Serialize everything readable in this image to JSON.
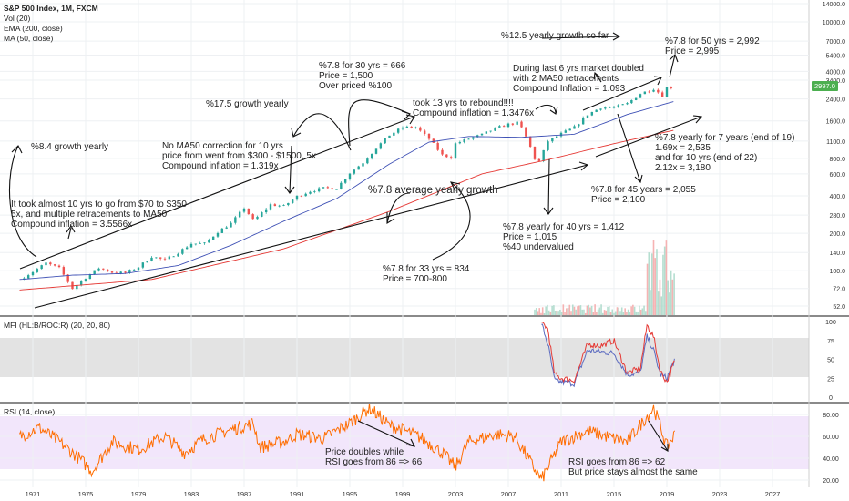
{
  "header": {
    "symbol": "S&P 500 Index, 1M, FXCM",
    "vol": "Vol (20)",
    "ema": "EMA (200, close)",
    "ma": "MA (50, close)",
    "last_price": "2997.0"
  },
  "panes": {
    "mfi_label": "MFI (HL:B/ROC:R) (20, 20, 80)",
    "rsi_label": "RSI (14, close)"
  },
  "annotations": [
    {
      "id": "a1",
      "lines": [
        "%8.4 growth yearly"
      ]
    },
    {
      "id": "a2",
      "lines": [
        "It took almost 10 yrs to go from $70 to $350",
        "5x, and multiple retracements to MA50",
        "Compound inflation = 3.5566x"
      ]
    },
    {
      "id": "a3",
      "lines": [
        "%17.5 growth yearly"
      ]
    },
    {
      "id": "a4",
      "lines": [
        "No MA50 correction for 10 yrs",
        "price from went from $300 - $1500, 5x",
        "Compound inflation = 1.319x"
      ]
    },
    {
      "id": "a5",
      "lines": [
        "%7.8 for 30 yrs = 666",
        "Price = 1,500",
        "Over priced %100"
      ]
    },
    {
      "id": "a6",
      "lines": [
        "took 13 yrs to rebound!!!!",
        "Compound inflation = 1.3476x"
      ]
    },
    {
      "id": "a7",
      "lines": [
        "%7.8 average yearly growth"
      ]
    },
    {
      "id": "a8",
      "lines": [
        "%7.8 for 33 yrs = 834",
        "Price = 700-800"
      ]
    },
    {
      "id": "a9",
      "lines": [
        "%12.5 yearly growth so far"
      ]
    },
    {
      "id": "a10",
      "lines": [
        "During last 6 yrs market doubled",
        "with 2 MA50 retracements",
        "Compound Inflation = 1.093"
      ]
    },
    {
      "id": "a11",
      "lines": [
        "%7.8 for 50 yrs = 2,992",
        "Price = 2,995"
      ]
    },
    {
      "id": "a12",
      "lines": [
        "%7.8 yearly for 7 years (end of 19)",
        "1.69x = 2,535",
        "and for 10 yrs (end of 22)",
        "2.12x = 3,180"
      ]
    },
    {
      "id": "a13",
      "lines": [
        "%7.8 for 45 years = 2,055",
        "Price = 2,100"
      ]
    },
    {
      "id": "a14",
      "lines": [
        "%7.8 yearly for 40 yrs = 1,412",
        "Price = 1,015",
        "%40 undervalued"
      ]
    },
    {
      "id": "a15",
      "lines": [
        "Price doubles while",
        "RSI goes from 86 => 66"
      ]
    },
    {
      "id": "a16",
      "lines": [
        "RSI goes from 86 => 62",
        "But price stays almost the same"
      ]
    }
  ],
  "chart_data": {
    "type": "line",
    "title": "S&P 500 Index, 1M, FXCM",
    "x_ticks": [
      "1971",
      "1975",
      "1979",
      "1983",
      "1987",
      "1991",
      "1995",
      "1999",
      "2003",
      "2007",
      "2011",
      "2015",
      "2019",
      "2023",
      "2027"
    ],
    "price_axis": {
      "scale": "log",
      "ticks": [
        "14000.0",
        "10000.0",
        "7000.0",
        "5400.0",
        "4000.0",
        "3400.0",
        "2400.0",
        "1600.0",
        "1100.0",
        "800.0",
        "600.0",
        "400.0",
        "280.0",
        "200.0",
        "140.0",
        "100.0",
        "72.0",
        "52.0"
      ]
    },
    "mfi_axis": {
      "ticks": [
        "100",
        "75",
        "50",
        "25",
        "0"
      ],
      "band": [
        20,
        80
      ]
    },
    "rsi_axis": {
      "ticks": [
        "80.00",
        "60.00",
        "40.00",
        "20.00"
      ],
      "band": [
        30,
        70
      ]
    },
    "price_series": {
      "name": "S&P 500",
      "x": [
        1970,
        1971,
        1972,
        1973,
        1974,
        1975,
        1976,
        1977,
        1978,
        1979,
        1980,
        1981,
        1982,
        1983,
        1984,
        1985,
        1986,
        1987,
        1987.8,
        1988,
        1989,
        1990,
        1991,
        1992,
        1993,
        1994,
        1995,
        1996,
        1997,
        1998,
        1999,
        2000,
        2001,
        2002,
        2002.8,
        2003,
        2004,
        2005,
        2006,
        2007,
        2007.8,
        2008.5,
        2009.2,
        2010,
        2011,
        2012,
        2013,
        2014,
        2015,
        2016,
        2017,
        2018,
        2018.9,
        2019,
        2019.6
      ],
      "y": [
        85,
        98,
        115,
        105,
        72,
        88,
        105,
        97,
        96,
        107,
        130,
        122,
        140,
        165,
        165,
        205,
        240,
        320,
        245,
        270,
        340,
        330,
        395,
        435,
        460,
        460,
        610,
        740,
        970,
        1230,
        1420,
        1420,
        1150,
        850,
        810,
        1050,
        1150,
        1240,
        1390,
        1500,
        1550,
        1100,
        700,
        1100,
        1260,
        1420,
        1800,
        2050,
        2050,
        2200,
        2650,
        2900,
        2450,
        2950,
        2995
      ]
    },
    "ema200_series": {
      "name": "EMA (200, close)",
      "x": [
        1970,
        1980,
        1990,
        1998,
        2005,
        2010,
        2015,
        2019.6
      ],
      "y": [
        70,
        85,
        150,
        300,
        600,
        780,
        1050,
        1350
      ]
    },
    "ma50_series": {
      "name": "MA (50, close)",
      "x": [
        1970,
        1974,
        1978,
        1982,
        1986,
        1990,
        1994,
        1998,
        2001,
        2004,
        2008,
        2012,
        2016,
        2019.6
      ],
      "y": [
        85,
        92,
        95,
        110,
        160,
        250,
        380,
        720,
        1080,
        1200,
        1180,
        1250,
        1800,
        2300
      ]
    },
    "rsi_series": {
      "name": "RSI (14, close)",
      "x": [
        1970,
        1971.5,
        1973,
        1974.5,
        1975.5,
        1977,
        1979,
        1981,
        1982.5,
        1984,
        1986,
        1987.7,
        1988.2,
        1990,
        1991,
        1993,
        1995,
        1996.5,
        1998,
        1999,
        2000.5,
        2002,
        2003,
        2004,
        2006,
        2007.5,
        2008,
        2009,
        2009.5,
        2011,
        2013,
        2015,
        2016,
        2018,
        2018.5,
        2019,
        2019.6
      ],
      "y": [
        60,
        68,
        55,
        40,
        28,
        55,
        48,
        60,
        45,
        58,
        66,
        72,
        50,
        55,
        62,
        58,
        72,
        86,
        70,
        66,
        58,
        45,
        32,
        55,
        62,
        60,
        50,
        30,
        20,
        55,
        65,
        58,
        55,
        86,
        70,
        50,
        62
      ]
    },
    "mfi_blue": {
      "name": "MFI",
      "x": [
        2009.5,
        2010,
        2010.5,
        2011,
        2012,
        2013,
        2014,
        2015,
        2016,
        2017,
        2017.5,
        2018,
        2018.5,
        2019,
        2019.6
      ],
      "y": [
        98,
        70,
        22,
        20,
        18,
        62,
        60,
        58,
        30,
        32,
        80,
        62,
        30,
        25,
        50
      ]
    },
    "mfi_red": {
      "name": "ROC",
      "x": [
        2009.5,
        2010,
        2010.5,
        2011,
        2012,
        2013,
        2014,
        2015,
        2016,
        2017,
        2017.5,
        2018,
        2018.5,
        2019,
        2019.6
      ],
      "y": [
        100,
        90,
        30,
        25,
        22,
        70,
        68,
        75,
        32,
        38,
        95,
        80,
        35,
        20,
        48
      ]
    }
  },
  "colors": {
    "up": "#26a69a",
    "down": "#ef5350",
    "ma50": "#3f51b5",
    "ema200": "#e53935",
    "rsi": "#ff6d00",
    "mfi_blue": "#5c6bc0",
    "mfi_red": "#e53935",
    "grid": "#eef0f3",
    "pane_band": "#d9d9d9",
    "rsi_band": "#f2e6fb",
    "price_tag": "#4caf50"
  }
}
